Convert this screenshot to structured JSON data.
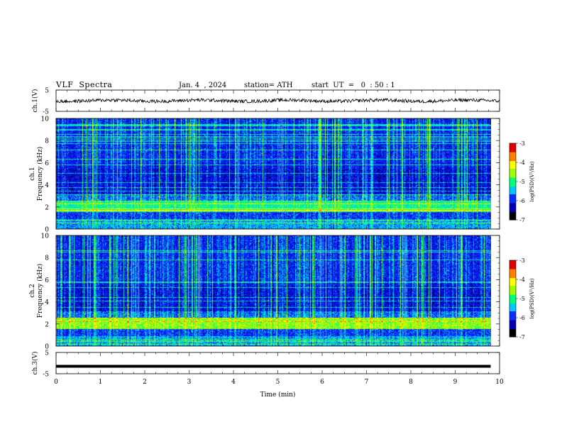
{
  "header": {
    "title": "VLF  Spectra",
    "date": "Jan. 4  , 2024",
    "station": "station= ATH",
    "start": "start  UT  =   0  : 50 : 1"
  },
  "chart_data": [
    {
      "type": "line",
      "panel": "ch1-waveform",
      "ylabel": "ch.1(V)",
      "ylim": [
        -5,
        5
      ],
      "yticks": [
        "5",
        "-5"
      ],
      "xlim": [
        0,
        10
      ],
      "series": [
        {
          "values_desc": "noisy trace near 0 V",
          "baseline": 0,
          "amplitude": 1
        }
      ]
    },
    {
      "type": "heatmap",
      "panel": "ch1-spectrogram",
      "ylabel_top": "ch.1",
      "ylabel": "Frequency  (kHz)",
      "ylim": [
        0,
        10
      ],
      "yticks": [
        "0",
        "2",
        "4",
        "6",
        "8",
        "10"
      ],
      "xlim": [
        0,
        10
      ],
      "data_end_min": 9.8,
      "colorbar": {
        "label": "log(PSD)(V²/Hz)",
        "range": [
          -7,
          -3
        ],
        "ticks": [
          "-3",
          "-4",
          "-5",
          "-6",
          "-7"
        ]
      }
    },
    {
      "type": "heatmap",
      "panel": "ch2-spectrogram",
      "ylabel_top": "ch.2",
      "ylabel": "Frequency  (kHz)",
      "ylim": [
        0,
        10
      ],
      "yticks": [
        "0",
        "2",
        "4",
        "6",
        "8",
        "10"
      ],
      "xlim": [
        0,
        10
      ],
      "data_end_min": 9.8,
      "colorbar": {
        "label": "log(PSD)(V²/Hz)",
        "range": [
          -7,
          -3
        ],
        "ticks": [
          "-3",
          "-4",
          "-5",
          "-6",
          "-7"
        ]
      }
    },
    {
      "type": "line",
      "panel": "ch3-waveform",
      "ylabel": "ch.3(V)",
      "ylim": [
        -5,
        5
      ],
      "yticks": [
        "5",
        "-5"
      ],
      "xlim": [
        0,
        10
      ],
      "series": [
        {
          "constant": -1.5
        }
      ]
    }
  ],
  "x_axis": {
    "xlabel": "Time  (min)",
    "ticks": [
      "0",
      "1",
      "2",
      "3",
      "4",
      "5",
      "6",
      "7",
      "8",
      "9",
      "10"
    ]
  },
  "colors": {
    "colormap": [
      "#000000",
      "#0000b0",
      "#0a2dff",
      "#00c8ff",
      "#00ff78",
      "#a0ff00",
      "#ffff00",
      "#ff8000",
      "#e00000",
      "#ffffff"
    ]
  }
}
